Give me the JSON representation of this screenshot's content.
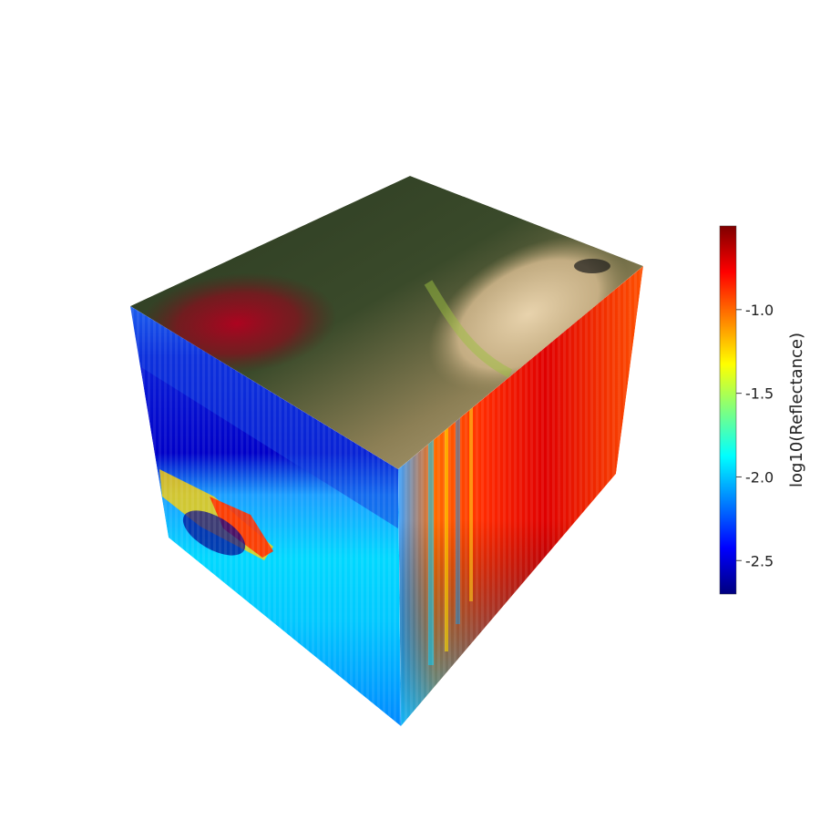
{
  "chart_data": {
    "type": "heatmap",
    "title": "",
    "colorbar": {
      "title": "log10(Reflectance)",
      "range": [
        -2.7,
        -0.5
      ],
      "ticks": [
        -1.0,
        -1.5,
        -2.0,
        -2.5
      ],
      "tick_labels": [
        "-1.0",
        "-1.5",
        "-2.0",
        "-2.5"
      ],
      "colormap": "jet",
      "colormap_stops": [
        "#00007f",
        "#0000ff",
        "#007fff",
        "#00ffff",
        "#7fff7f",
        "#ffff00",
        "#ff7f00",
        "#ff0000",
        "#7f0000"
      ]
    },
    "cube": {
      "top_face": "true-color image of vegetated shoreline with reddish water plume",
      "left_face_mean": -2.2,
      "right_face_mean": -1.1
    }
  }
}
